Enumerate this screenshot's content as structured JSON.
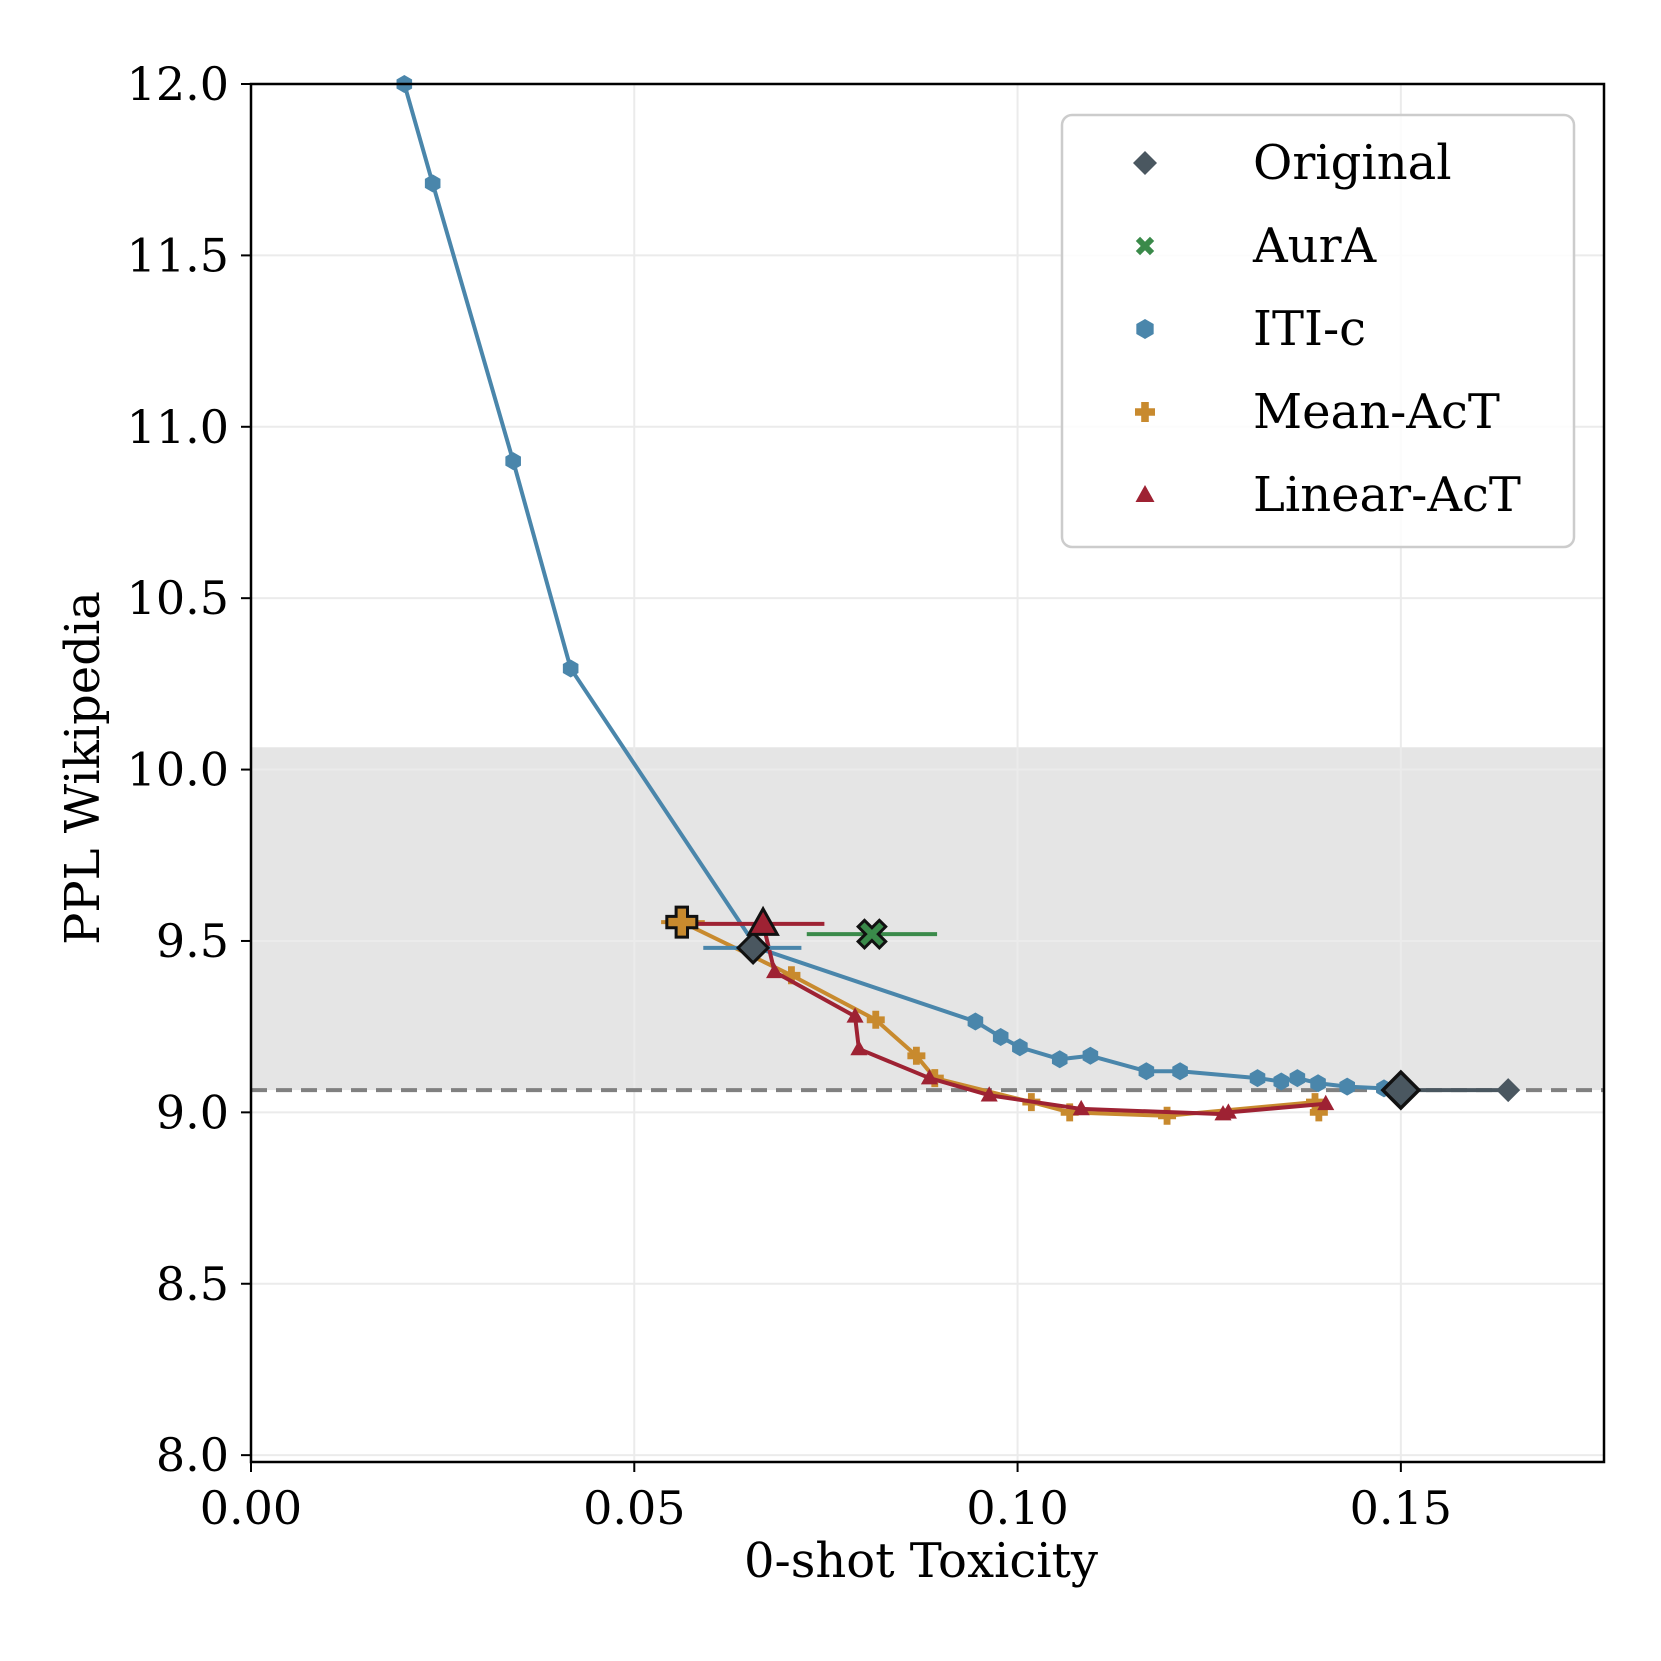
{
  "chart_data": {
    "type": "scatter",
    "xlabel": "0-shot Toxicity",
    "ylabel": "PPL Wikipedia",
    "xlim": [
      0.0,
      0.1765
    ],
    "ylim": [
      7.98,
      12.0
    ],
    "xticks": [
      "0.00",
      "0.05",
      "0.10",
      "0.15"
    ],
    "xtick_values": [
      0.0,
      0.05,
      0.1,
      0.15
    ],
    "yticks": [
      "8.0",
      "8.5",
      "9.0",
      "9.5",
      "10.0",
      "10.5",
      "11.0",
      "11.5",
      "12.0"
    ],
    "ytick_values": [
      8.0,
      8.5,
      9.0,
      9.5,
      10.0,
      10.5,
      11.0,
      11.5,
      12.0
    ],
    "grid": true,
    "legend_position": "top-right",
    "baseline_ppl": 9.065,
    "shaded_band": [
      9.065,
      10.065
    ],
    "series": [
      {
        "name": "Original",
        "color": "#4a5760",
        "marker": "diamond",
        "points": [
          [
            0.15,
            9.065
          ],
          [
            0.164,
            9.065
          ]
        ]
      },
      {
        "name": "AurA",
        "color": "#3a8a4a",
        "marker": "x",
        "points": [],
        "highlight": {
          "x": 0.081,
          "y": 9.52,
          "xerr": [
            0.0725,
            0.0895
          ]
        }
      },
      {
        "name": "ITI-c",
        "color": "#4a86ab",
        "marker": "hexagon",
        "points": [
          [
            0.02,
            12.0
          ],
          [
            0.0237,
            11.71
          ],
          [
            0.0342,
            10.9
          ],
          [
            0.0417,
            10.295
          ],
          [
            0.066,
            9.48
          ],
          [
            0.0945,
            9.265
          ],
          [
            0.0978,
            9.22
          ],
          [
            0.1003,
            9.19
          ],
          [
            0.1055,
            9.155
          ],
          [
            0.1095,
            9.165
          ],
          [
            0.1168,
            9.12
          ],
          [
            0.1212,
            9.12
          ],
          [
            0.1313,
            9.1
          ],
          [
            0.1344,
            9.09
          ],
          [
            0.1365,
            9.1
          ],
          [
            0.1392,
            9.085
          ],
          [
            0.143,
            9.075
          ],
          [
            0.1478,
            9.07
          ]
        ],
        "highlight": {
          "x": 0.0655,
          "y": 9.48,
          "xerr": [
            0.059,
            0.0718
          ]
        }
      },
      {
        "name": "Mean-AcT",
        "color": "#c88a2e",
        "marker": "plus",
        "points": [
          [
            0.0562,
            9.555
          ],
          [
            0.0705,
            9.4
          ],
          [
            0.0815,
            9.27
          ],
          [
            0.0868,
            9.165
          ],
          [
            0.0892,
            9.1
          ],
          [
            0.1018,
            9.03
          ],
          [
            0.1068,
            9.0
          ],
          [
            0.1195,
            8.99
          ],
          [
            0.1388,
            9.03
          ],
          [
            0.1393,
            9.0
          ]
        ],
        "highlight": {
          "x": 0.0562,
          "y": 9.555,
          "xerr": [
            0.0535,
            0.0592
          ]
        }
      },
      {
        "name": "Linear-AcT",
        "color": "#9e2233",
        "marker": "triangle",
        "points": [
          [
            0.0668,
            9.55
          ],
          [
            0.0683,
            9.41
          ],
          [
            0.0788,
            9.28
          ],
          [
            0.0793,
            9.185
          ],
          [
            0.0885,
            9.1
          ],
          [
            0.0963,
            9.05
          ],
          [
            0.1083,
            9.01
          ],
          [
            0.1268,
            8.995
          ],
          [
            0.1275,
            9.0
          ],
          [
            0.1402,
            9.025
          ]
        ],
        "highlight": {
          "x": 0.0668,
          "y": 9.55,
          "xerr": [
            0.0578,
            0.0748
          ]
        }
      }
    ]
  }
}
